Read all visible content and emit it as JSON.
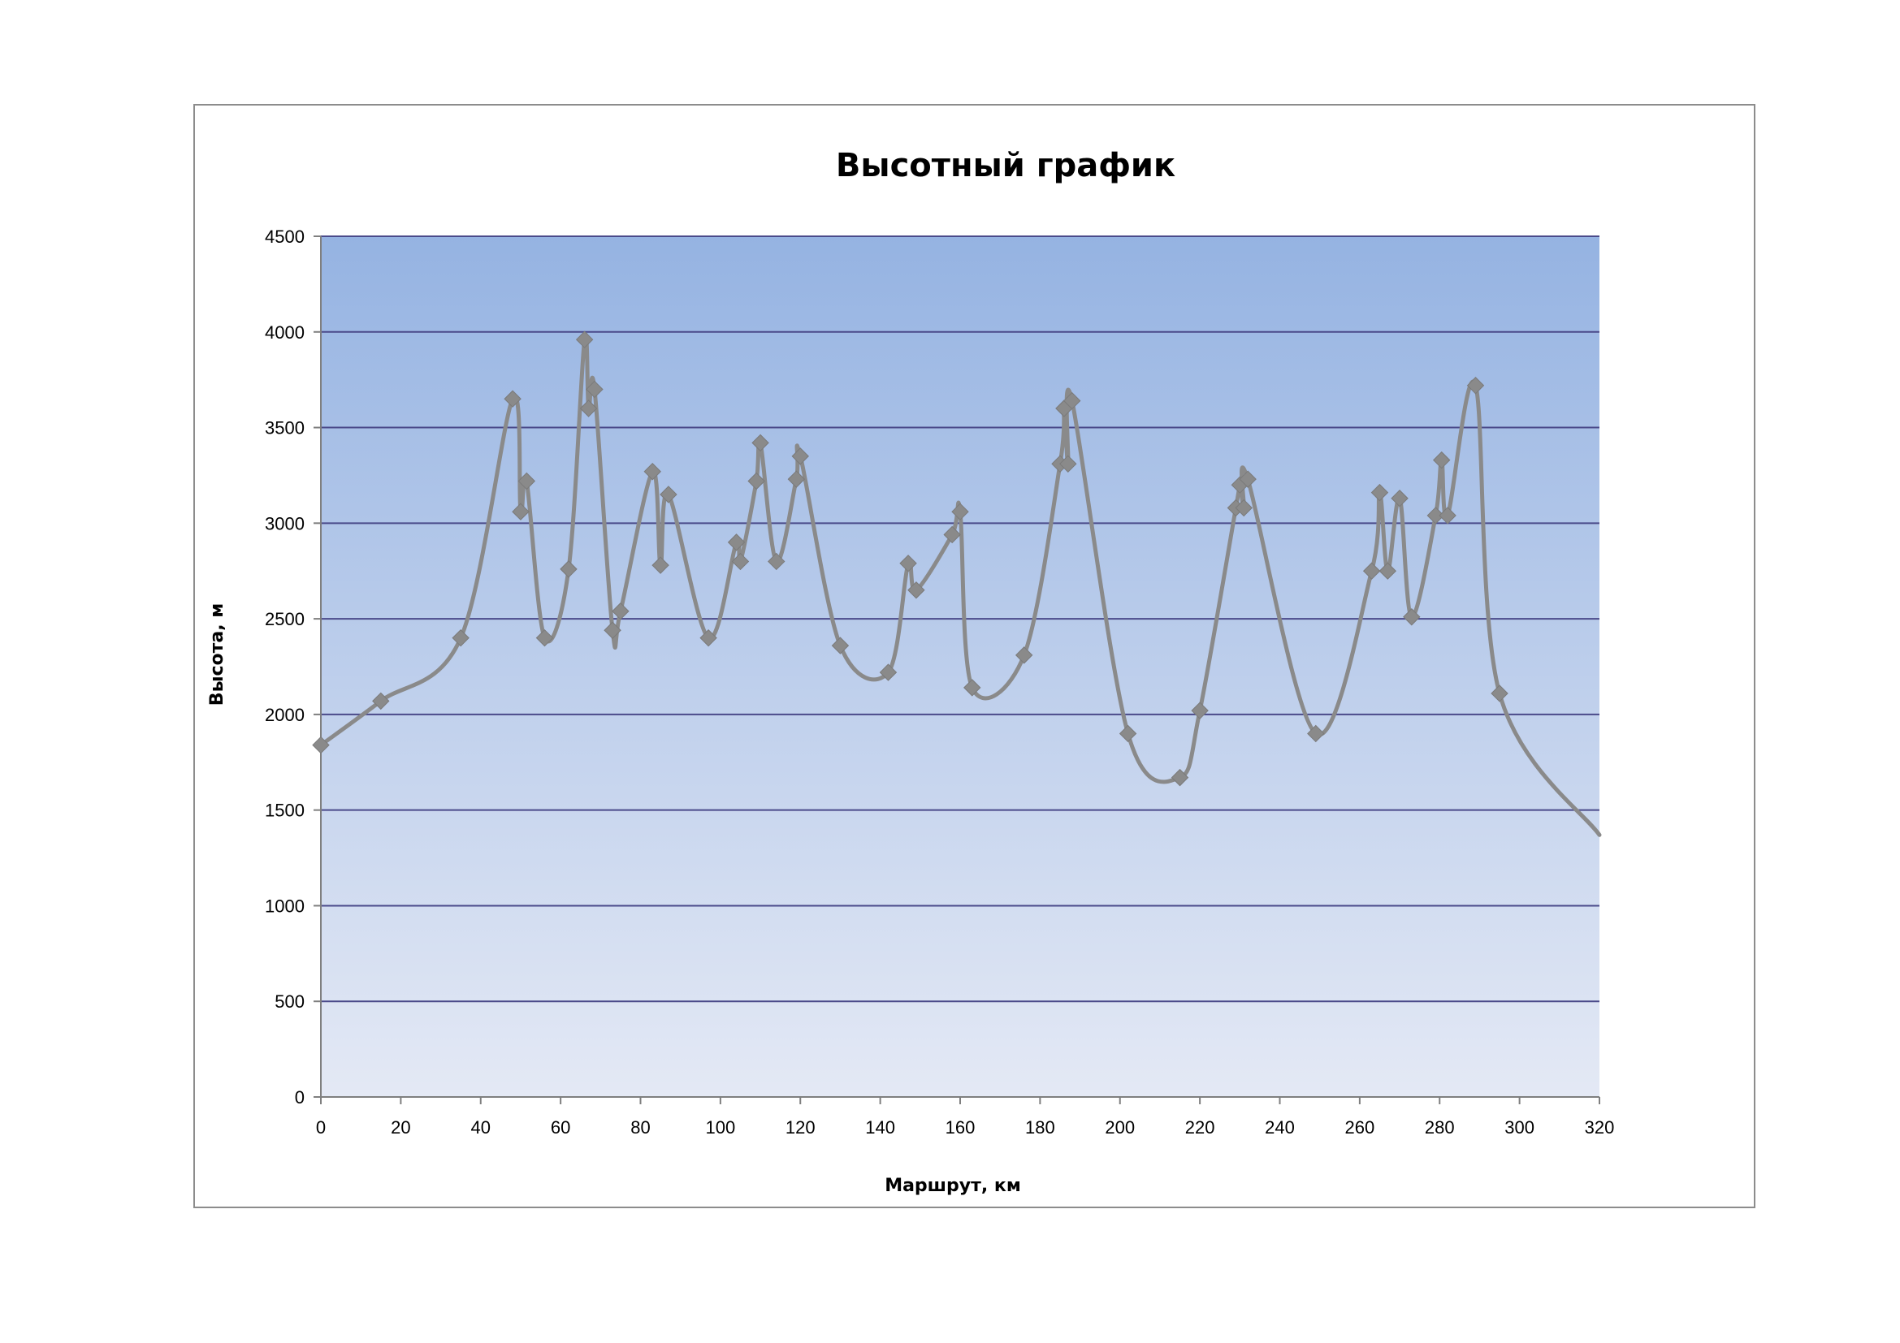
{
  "chart_data": {
    "type": "line",
    "title": "Высотный график",
    "xlabel": "Маршрут, км",
    "ylabel": "Высота, м",
    "xlim": [
      0,
      320
    ],
    "ylim": [
      0,
      4500
    ],
    "x_ticks": [
      "0",
      "20",
      "40",
      "60",
      "80",
      "100",
      "120",
      "140",
      "160",
      "180",
      "200",
      "220",
      "240",
      "260",
      "280",
      "300",
      "320"
    ],
    "y_ticks": [
      "0",
      "500",
      "1000",
      "1500",
      "2000",
      "2500",
      "3000",
      "3500",
      "4000",
      "4500"
    ],
    "grid": true,
    "legend": "none",
    "colors": {
      "line": "#8a8a8a",
      "marker": "#8a8a8a",
      "gridline": "#4a4a8a",
      "plot_bg_top": "#95b3e2",
      "plot_bg_bottom": "#e4e9f5"
    },
    "series": [
      {
        "points": [
          [
            0,
            1840
          ],
          [
            15,
            2070
          ],
          [
            35,
            2400
          ],
          [
            48,
            3650
          ],
          [
            50,
            3060
          ],
          [
            51.5,
            3220
          ],
          [
            56,
            2400
          ],
          [
            62,
            2760
          ],
          [
            66,
            3960
          ],
          [
            67,
            3600
          ],
          [
            68.5,
            3700
          ],
          [
            73,
            2440
          ],
          [
            75,
            2540
          ],
          [
            83,
            3270
          ],
          [
            85,
            2780
          ],
          [
            87,
            3150
          ],
          [
            97,
            2400
          ],
          [
            104,
            2900
          ],
          [
            105,
            2800
          ],
          [
            109,
            3220
          ],
          [
            110,
            3420
          ],
          [
            114,
            2800
          ],
          [
            119,
            3230
          ],
          [
            120,
            3350
          ],
          [
            130,
            2360
          ],
          [
            142,
            2220
          ],
          [
            147,
            2790
          ],
          [
            149,
            2650
          ],
          [
            158,
            2940
          ],
          [
            160,
            3060
          ],
          [
            163,
            2140
          ],
          [
            176,
            2310
          ],
          [
            185,
            3310
          ],
          [
            186,
            3600
          ],
          [
            187,
            3310
          ],
          [
            188,
            3640
          ],
          [
            202,
            1900
          ],
          [
            215,
            1670
          ],
          [
            220,
            2020
          ],
          [
            229,
            3080
          ],
          [
            230,
            3200
          ],
          [
            231,
            3080
          ],
          [
            232,
            3230
          ],
          [
            249,
            1900
          ],
          [
            263,
            2750
          ],
          [
            265,
            3160
          ],
          [
            267,
            2750
          ],
          [
            270,
            3130
          ],
          [
            273,
            2510
          ],
          [
            279,
            3040
          ],
          [
            280.5,
            3330
          ],
          [
            282,
            3040
          ],
          [
            289,
            3720
          ],
          [
            295,
            2110
          ]
        ],
        "end_point": [
          320,
          1370
        ]
      }
    ]
  }
}
